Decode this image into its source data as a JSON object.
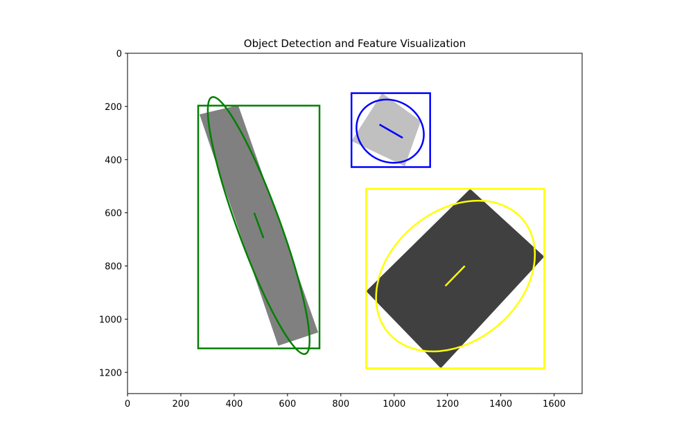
{
  "chart_data": {
    "type": "image",
    "title": "Object Detection and Feature Visualization",
    "xlim": [
      0,
      1705
    ],
    "ylim": [
      1280,
      0
    ],
    "y_inverted": true,
    "x_ticks": [
      0,
      200,
      400,
      600,
      800,
      1000,
      1200,
      1400,
      1600
    ],
    "y_ticks": [
      0,
      200,
      400,
      600,
      800,
      1000,
      1200
    ],
    "grid": false,
    "objects": [
      {
        "id": "object-1",
        "fill": "#808080",
        "edge_color": "#008000",
        "polygon": [
          [
            270,
            230
          ],
          [
            415,
            195
          ],
          [
            715,
            1050
          ],
          [
            565,
            1100
          ]
        ],
        "bbox": {
          "x0": 265,
          "y0": 197,
          "x1": 720,
          "y1": 1110
        },
        "ellipse": {
          "cx": 492,
          "cy": 648,
          "rx": 513,
          "ry": 80,
          "angle_deg": 70
        },
        "axis_line": [
          [
            475,
            600
          ],
          [
            510,
            695
          ]
        ]
      },
      {
        "id": "object-2",
        "fill": "#c0c0c0",
        "edge_color": "#0000ff",
        "polygon": [
          [
            955,
            150
          ],
          [
            1100,
            255
          ],
          [
            1040,
            425
          ],
          [
            840,
            330
          ]
        ],
        "bbox": {
          "x0": 840,
          "y0": 150,
          "x1": 1135,
          "y1": 428
        },
        "ellipse": {
          "cx": 985,
          "cy": 293,
          "rx": 130,
          "ry": 115,
          "angle_deg": 30
        },
        "axis_line": [
          [
            945,
            268
          ],
          [
            1032,
            318
          ]
        ]
      },
      {
        "id": "object-3",
        "fill": "#404040",
        "edge_color": "#ffff00",
        "polygon": [
          [
            1285,
            510
          ],
          [
            1563,
            765
          ],
          [
            1175,
            1185
          ],
          [
            895,
            895
          ]
        ],
        "bbox": {
          "x0": 895,
          "y0": 510,
          "x1": 1563,
          "y1": 1185
        },
        "ellipse": {
          "cx": 1230,
          "cy": 838,
          "rx": 330,
          "ry": 245,
          "angle_deg": -40
        },
        "axis_line": [
          [
            1192,
            875
          ],
          [
            1265,
            800
          ]
        ]
      }
    ]
  }
}
